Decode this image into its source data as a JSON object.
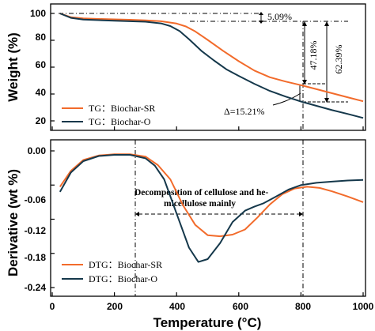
{
  "chart_data": [
    {
      "type": "line",
      "panel": "top",
      "ylabel": "Weight (%)",
      "xlim": [
        0,
        1000
      ],
      "ylim": [
        17,
        103
      ],
      "y_ticks": [
        "20",
        "40",
        "60",
        "80",
        "100"
      ],
      "y_tick_values": [
        20,
        40,
        60,
        80,
        100
      ],
      "grid": false,
      "legend_placement": "bottom-left",
      "series": [
        {
          "name": "TG：Biochar-SR",
          "color": "#f26b2b",
          "x": [
            25,
            60,
            100,
            150,
            200,
            250,
            300,
            350,
            400,
            430,
            460,
            500,
            550,
            600,
            650,
            700,
            750,
            800,
            850,
            900,
            950,
            1000
          ],
          "y": [
            100,
            97.2,
            96.3,
            95.9,
            95.6,
            95.3,
            94.9,
            94.2,
            92.5,
            90.3,
            86.6,
            80.3,
            72.1,
            64.4,
            57.5,
            52.5,
            49.3,
            46.6,
            43.6,
            40.6,
            37.6,
            34.6
          ]
        },
        {
          "name": "TG：Biochar-O",
          "color": "#15384b",
          "x": [
            25,
            60,
            100,
            150,
            200,
            250,
            300,
            350,
            380,
            410,
            440,
            480,
            520,
            560,
            600,
            650,
            700,
            750,
            800,
            850,
            900,
            950,
            1000
          ],
          "y": [
            100,
            96.7,
            95.4,
            95,
            94.6,
            94.2,
            93.8,
            92.6,
            90.6,
            86.8,
            80.8,
            72.1,
            65,
            58.4,
            53.5,
            47.6,
            42.3,
            38.1,
            34.4,
            31.2,
            28,
            25.2,
            22.2
          ]
        }
      ],
      "annotations": [
        "5.09%",
        "47.18%",
        "62.39%",
        "Δ=15.21%"
      ]
    },
    {
      "type": "line",
      "panel": "bottom",
      "xlabel": "Temperature (°C)",
      "ylabel": "Derivative (wt %)",
      "xlim": [
        0,
        1000
      ],
      "ylim": [
        -0.25,
        0.03
      ],
      "x_ticks": [
        "0",
        "200",
        "400",
        "600",
        "800",
        "1000"
      ],
      "x_tick_values": [
        0,
        200,
        400,
        600,
        800,
        1000
      ],
      "y_ticks": [
        "0.00",
        "-0.06",
        "-0.12",
        "-0.18",
        "-0.24"
      ],
      "y_tick_values": [
        0,
        -0.06,
        -0.12,
        -0.18,
        -0.24
      ],
      "grid": false,
      "legend_placement": "bottom-left",
      "series": [
        {
          "name": "DTG：Biochar-SR",
          "color": "#f26b2b",
          "x": [
            25,
            60,
            100,
            150,
            200,
            250,
            300,
            340,
            380,
            420,
            460,
            500,
            540,
            580,
            620,
            660,
            700,
            740,
            780,
            820,
            860,
            900,
            950,
            1000
          ],
          "y": [
            -0.063,
            -0.035,
            -0.016,
            -0.008,
            -0.006,
            -0.006,
            -0.01,
            -0.025,
            -0.05,
            -0.095,
            -0.13,
            -0.148,
            -0.15,
            -0.147,
            -0.138,
            -0.117,
            -0.094,
            -0.076,
            -0.066,
            -0.063,
            -0.065,
            -0.071,
            -0.08,
            -0.09
          ]
        },
        {
          "name": "DTG：Biochar-O",
          "color": "#15384b",
          "x": [
            25,
            60,
            100,
            150,
            200,
            250,
            300,
            330,
            360,
            400,
            440,
            470,
            500,
            540,
            580,
            620,
            650,
            680,
            720,
            760,
            800,
            850,
            900,
            950,
            1000
          ],
          "y": [
            -0.072,
            -0.038,
            -0.018,
            -0.009,
            -0.007,
            -0.007,
            -0.013,
            -0.026,
            -0.05,
            -0.11,
            -0.17,
            -0.195,
            -0.19,
            -0.162,
            -0.125,
            -0.105,
            -0.098,
            -0.092,
            -0.08,
            -0.068,
            -0.06,
            -0.056,
            -0.054,
            -0.052,
            -0.051
          ]
        }
      ],
      "annotations": [
        "Decomposition of cellulose and he-",
        "micellulose mainly"
      ]
    }
  ]
}
